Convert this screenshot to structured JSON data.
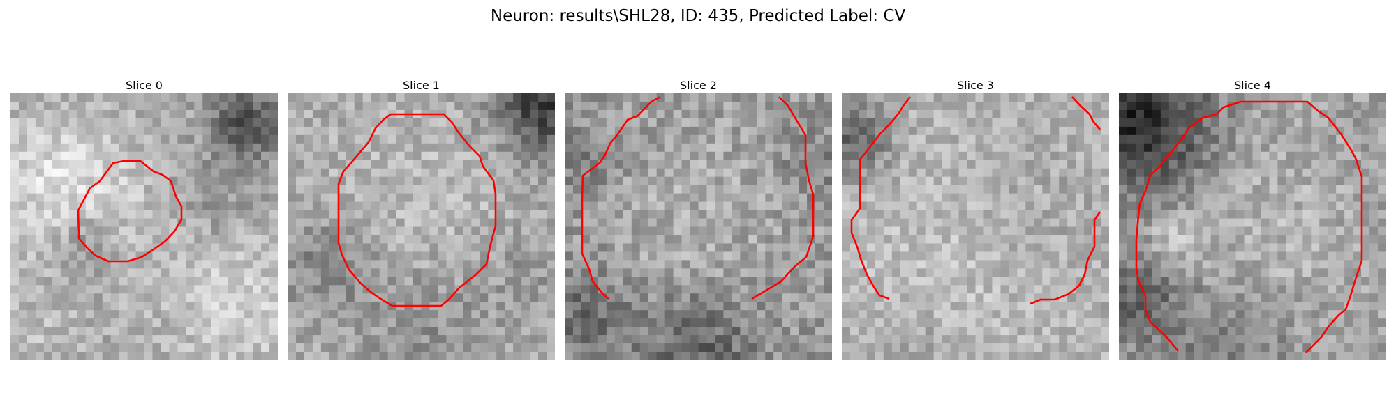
{
  "figure": {
    "title": "Neuron: results\\SHL28, ID: 435, Predicted Label: CV"
  },
  "contour_color": "#ff0000",
  "slices": [
    {
      "title": "Slice 0"
    },
    {
      "title": "Slice 1"
    },
    {
      "title": "Slice 2"
    },
    {
      "title": "Slice 3"
    },
    {
      "title": "Slice 4"
    }
  ]
}
